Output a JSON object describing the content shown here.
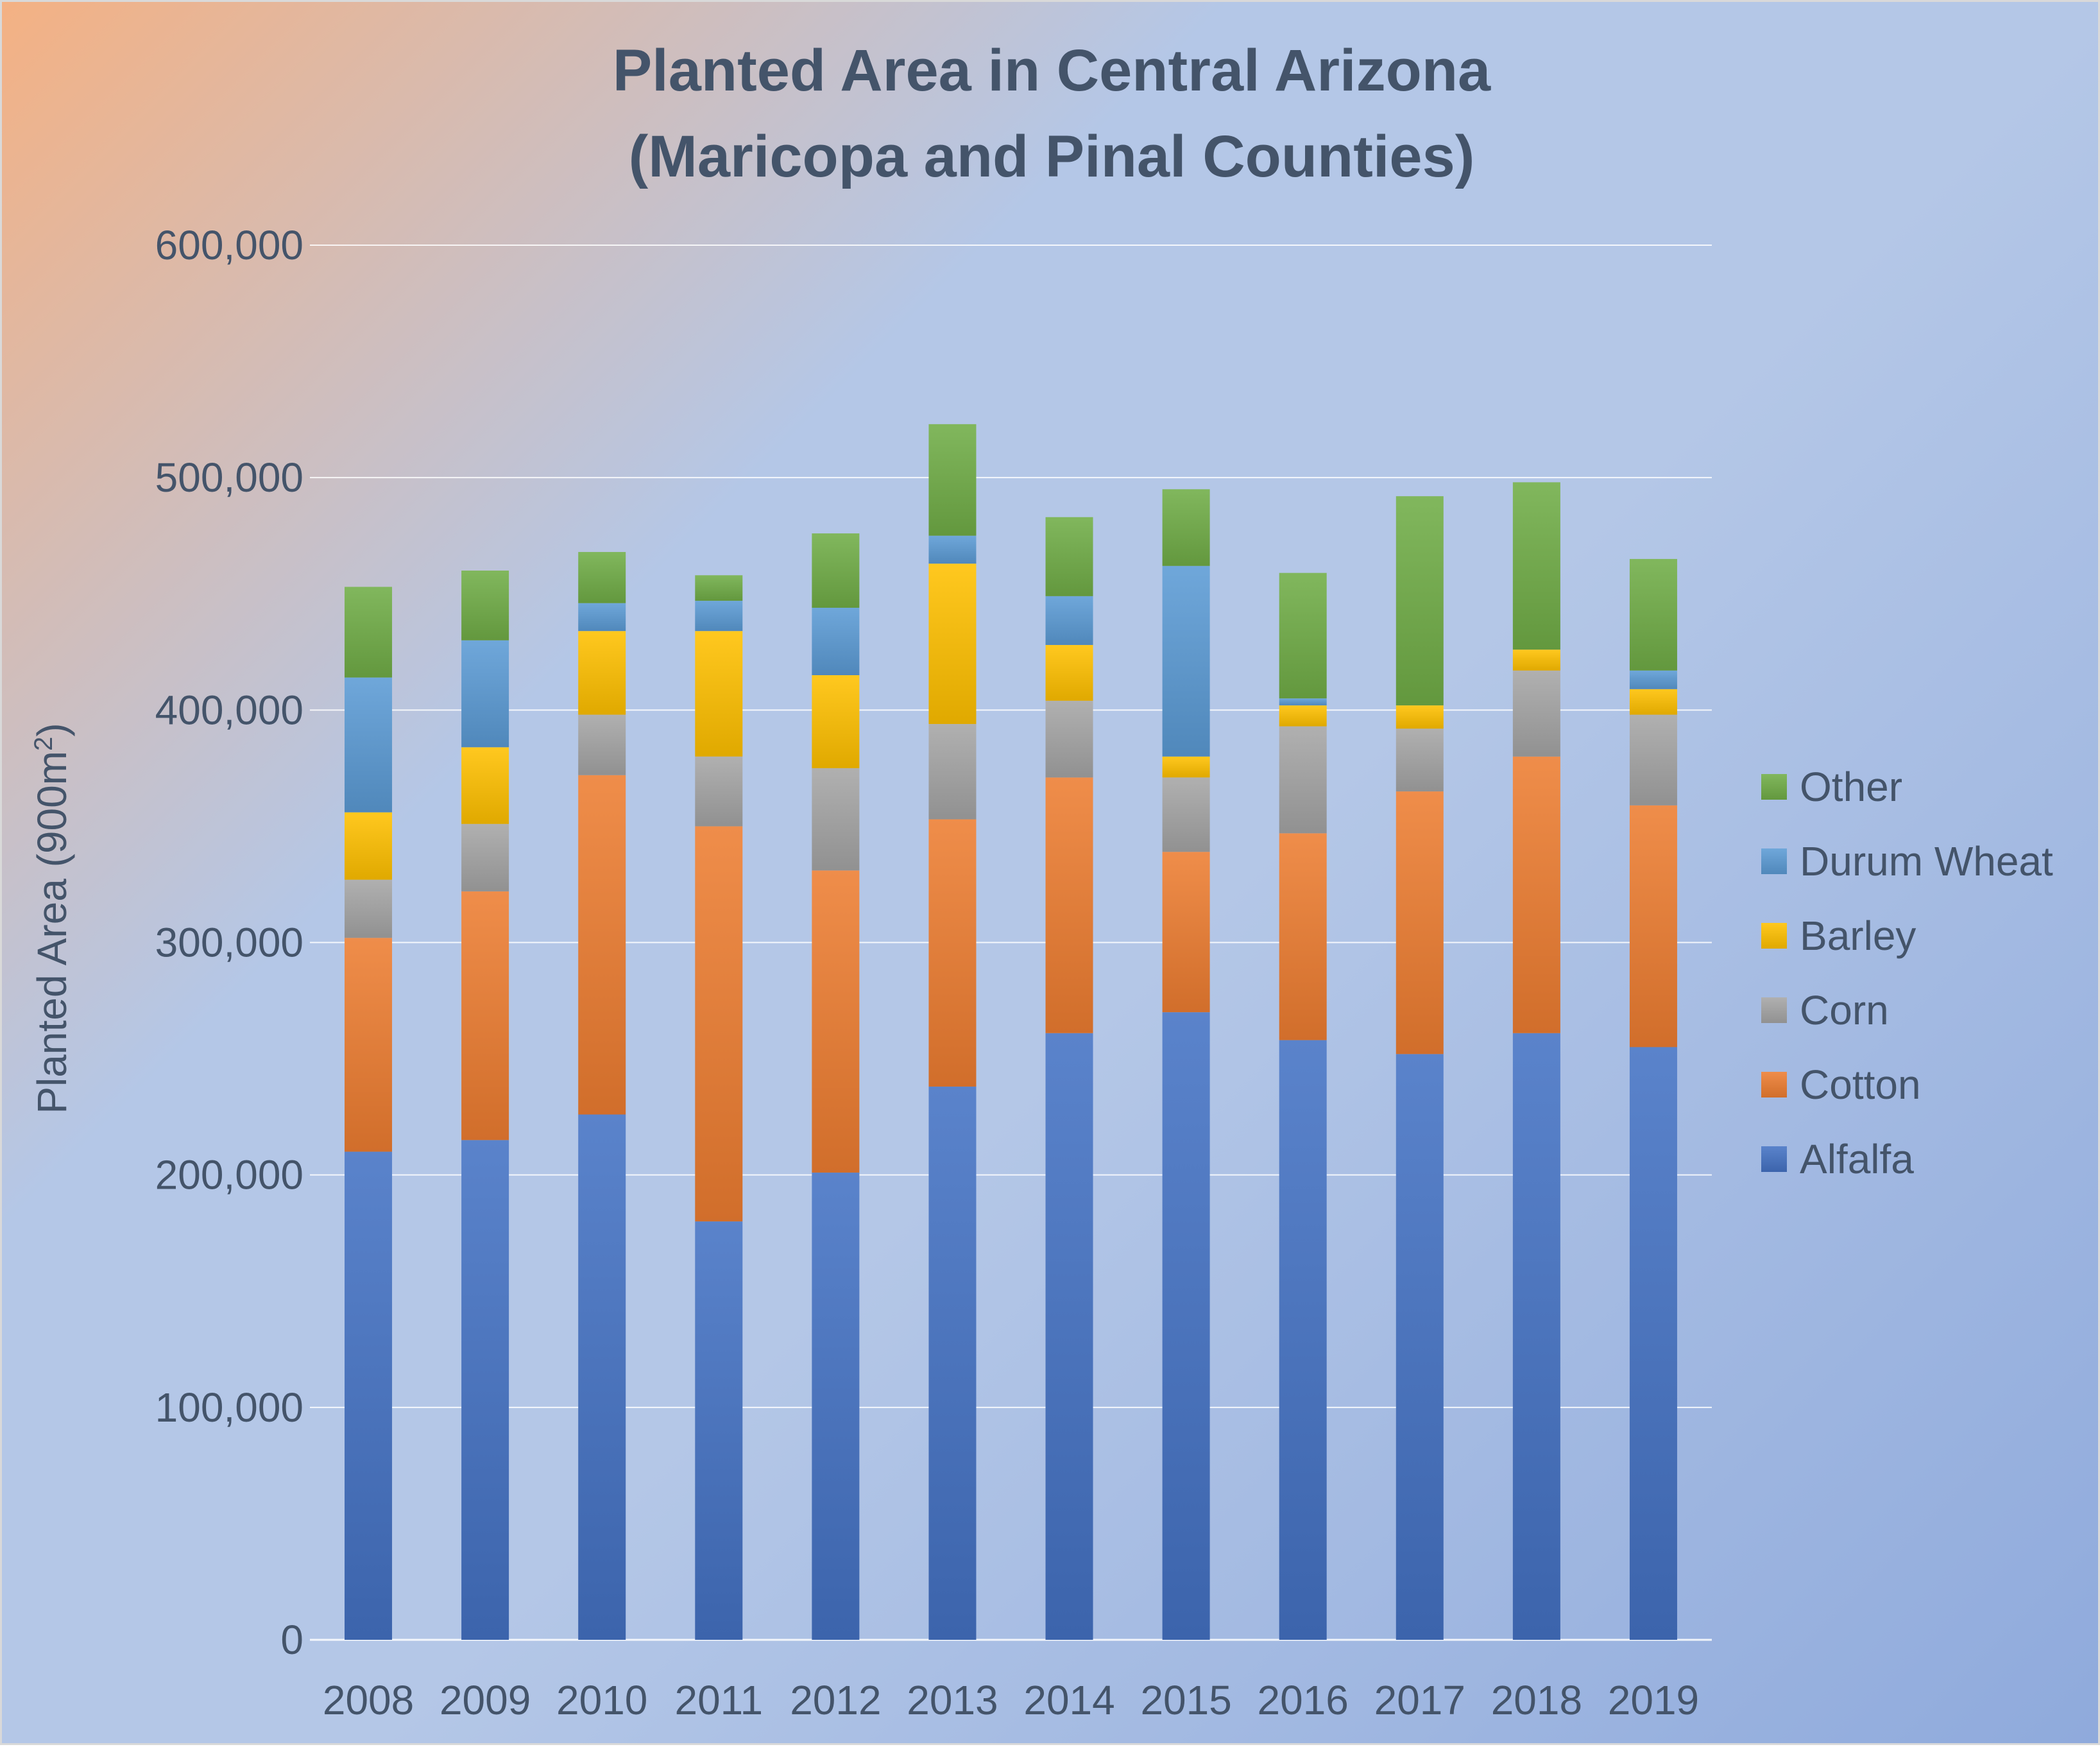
{
  "chart_data": {
    "type": "bar",
    "stacked": true,
    "title": [
      "Planted Area in Central Arizona",
      "(Maricopa and Pinal Counties)"
    ],
    "ylabel": "Planted Area (900m",
    "ylabel_superscript": "2",
    "ylabel_suffix": ")",
    "ylim": [
      0,
      600000
    ],
    "yticks": [
      0,
      100000,
      200000,
      300000,
      400000,
      500000,
      600000
    ],
    "ytick_labels": [
      "0",
      "100,000",
      "200,000",
      "300,000",
      "400,000",
      "500,000",
      "600,000"
    ],
    "grid": true,
    "legend_position": "right",
    "categories": [
      "2008",
      "2009",
      "2010",
      "2011",
      "2012",
      "2013",
      "2014",
      "2015",
      "2016",
      "2017",
      "2018",
      "2019"
    ],
    "series": [
      {
        "name": "Alfalfa",
        "color": "#4472c4",
        "values": [
          210000,
          215000,
          226000,
          180000,
          201000,
          238000,
          261000,
          270000,
          258000,
          252000,
          261000,
          255000
        ]
      },
      {
        "name": "Cotton",
        "color": "#ed7d31",
        "values": [
          92000,
          107000,
          146000,
          170000,
          130000,
          115000,
          110000,
          69000,
          89000,
          113000,
          119000,
          104000
        ]
      },
      {
        "name": "Corn",
        "color": "#a5a5a5",
        "values": [
          25000,
          29000,
          26000,
          30000,
          44000,
          41000,
          33000,
          32000,
          46000,
          27000,
          37000,
          39000
        ]
      },
      {
        "name": "Barley",
        "color": "#ffc000",
        "values": [
          29000,
          33000,
          36000,
          54000,
          40000,
          69000,
          24000,
          9000,
          9000,
          10000,
          9000,
          11000
        ]
      },
      {
        "name": "Durum Wheat",
        "color": "#5b9bd5",
        "values": [
          58000,
          46000,
          12000,
          13000,
          29000,
          12000,
          21000,
          82000,
          3000,
          0,
          0,
          8000
        ]
      },
      {
        "name": "Other",
        "color": "#70ad47",
        "values": [
          39000,
          30000,
          22000,
          11000,
          32000,
          48000,
          34000,
          33000,
          54000,
          90000,
          72000,
          48000
        ]
      }
    ]
  }
}
